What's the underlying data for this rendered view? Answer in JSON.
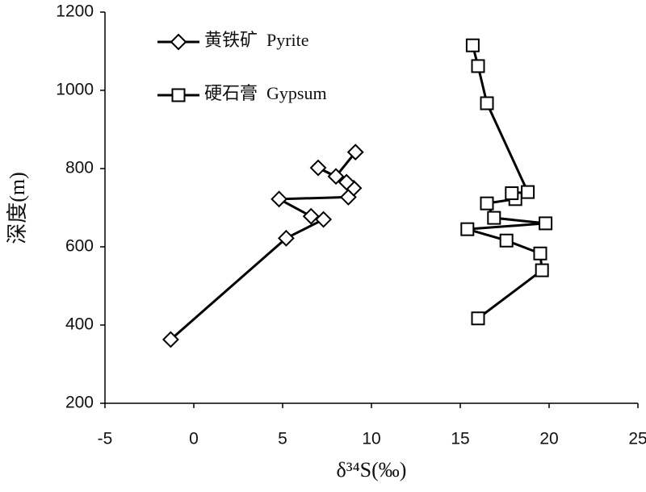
{
  "chart_data": {
    "type": "line",
    "xlabel": "δ³⁴S(‰)",
    "ylabel": "深度(m)",
    "xlim": [
      -5,
      25
    ],
    "xticks": [
      -5,
      0,
      5,
      10,
      15,
      20,
      25
    ],
    "ylim": [
      200,
      1200
    ],
    "yticks": [
      200,
      400,
      600,
      800,
      1000,
      1200
    ],
    "legend": "upper left",
    "series": [
      {
        "name": "黄铁矿  Pyrite",
        "color": "#000000",
        "marker": "diamond",
        "x": [
          -1.3,
          5.2,
          7.3,
          6.6,
          4.8,
          8.7,
          9.0,
          8.6,
          7.0,
          8.0,
          9.1
        ],
        "values": [
          363,
          622,
          670,
          678,
          722,
          727,
          750,
          765,
          802,
          780,
          842
        ]
      },
      {
        "name": "硬石膏  Gypsum",
        "color": "#000000",
        "marker": "square",
        "x": [
          16.0,
          19.6,
          19.5,
          17.6,
          15.4,
          19.8,
          16.9,
          16.5,
          18.1,
          17.9,
          18.8,
          16.5,
          16.0,
          15.7
        ],
        "values": [
          417,
          540,
          583,
          616,
          645,
          660,
          674,
          711,
          722,
          737,
          740,
          967,
          1062,
          1115
        ]
      }
    ]
  }
}
